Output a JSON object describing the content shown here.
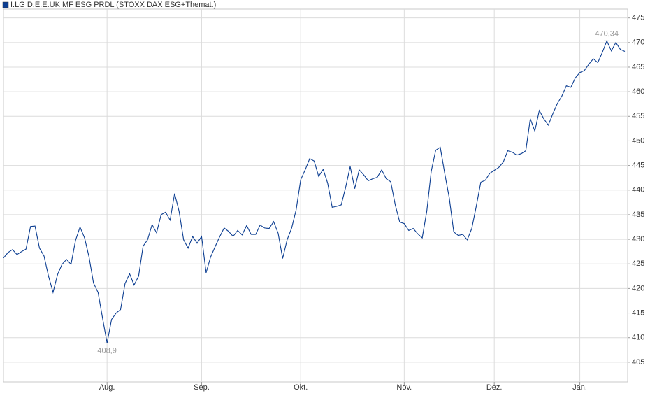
{
  "chart_data": {
    "type": "line",
    "title": "I.LG D.E.E.UK MF ESG PRDL (STOXX DAX ESG+Themat.)",
    "color": "#0b3d91",
    "grid": true,
    "ylim": [
      401,
      476.8
    ],
    "yticks": [
      405,
      410,
      415,
      420,
      425,
      430,
      435,
      440,
      445,
      450,
      455,
      460,
      465,
      470,
      475
    ],
    "categories": [
      null,
      null,
      null,
      null,
      null,
      null,
      null,
      null,
      null,
      null,
      null,
      null,
      null,
      null,
      null,
      null,
      null,
      null,
      null,
      null,
      null,
      null,
      null,
      "Aug.",
      null,
      null,
      null,
      null,
      null,
      null,
      null,
      null,
      null,
      null,
      null,
      null,
      null,
      null,
      null,
      null,
      null,
      null,
      null,
      null,
      "Sep.",
      null,
      null,
      null,
      null,
      null,
      null,
      null,
      null,
      null,
      null,
      null,
      null,
      null,
      null,
      null,
      null,
      null,
      null,
      null,
      null,
      null,
      "Okt.",
      null,
      null,
      null,
      null,
      null,
      null,
      null,
      null,
      null,
      null,
      null,
      null,
      null,
      null,
      null,
      null,
      null,
      null,
      null,
      null,
      null,
      null,
      "Nov.",
      null,
      null,
      null,
      null,
      null,
      null,
      null,
      null,
      null,
      null,
      null,
      null,
      null,
      null,
      null,
      null,
      null,
      null,
      null,
      "Dez.",
      null,
      null,
      null,
      null,
      null,
      null,
      null,
      null,
      null,
      null,
      null,
      null,
      null,
      null,
      null,
      null,
      null,
      null,
      "Jan.",
      null,
      null,
      null,
      null,
      null,
      null,
      null,
      null,
      null,
      null
    ],
    "values": [
      426.2,
      427.3,
      427.9,
      426.9,
      427.5,
      428.0,
      432.6,
      432.7,
      428.2,
      426.6,
      422.5,
      419.2,
      422.8,
      424.9,
      425.9,
      424.9,
      429.8,
      432.5,
      430.3,
      426.4,
      421.1,
      419.2,
      414.0,
      408.9,
      413.7,
      415.0,
      415.7,
      421.0,
      423.0,
      420.7,
      422.5,
      428.6,
      429.9,
      433.0,
      431.3,
      435.0,
      435.5,
      433.9,
      439.3,
      435.7,
      429.9,
      428.2,
      430.6,
      429.2,
      430.6,
      423.2,
      426.4,
      428.5,
      430.5,
      432.3,
      431.6,
      430.6,
      431.8,
      430.9,
      432.8,
      431.0,
      431.0,
      432.9,
      432.3,
      432.2,
      433.6,
      431.2,
      426.1,
      429.9,
      432.3,
      436.0,
      442.1,
      444.1,
      446.4,
      445.9,
      442.8,
      444.2,
      441.4,
      436.5,
      436.7,
      437.0,
      440.6,
      444.8,
      440.3,
      444.1,
      443.1,
      441.9,
      442.3,
      442.6,
      444.1,
      442.3,
      441.7,
      437.0,
      433.5,
      433.2,
      431.8,
      432.2,
      431.1,
      430.3,
      435.7,
      443.8,
      448.1,
      448.7,
      443.4,
      438.4,
      431.5,
      430.8,
      431.0,
      429.9,
      432.2,
      436.7,
      441.6,
      442.0,
      443.4,
      444.0,
      444.6,
      445.7,
      448.0,
      447.7,
      447.1,
      447.4,
      448.0,
      454.5,
      452.0,
      456.2,
      454.5,
      453.2,
      455.5,
      457.6,
      459.1,
      461.2,
      460.9,
      462.8,
      463.9,
      464.3,
      465.6,
      466.7,
      465.9,
      468.0,
      470.34,
      468.3,
      470.0,
      468.6,
      468.2
    ],
    "value_labels": [
      null,
      null,
      null,
      null,
      null,
      null,
      null,
      null,
      null,
      null,
      null,
      null,
      null,
      null,
      null,
      null,
      null,
      null,
      null,
      null,
      null,
      null,
      null,
      "408,9",
      null,
      null,
      null,
      null,
      null,
      null,
      null,
      null,
      null,
      null,
      null,
      null,
      null,
      null,
      null,
      null,
      null,
      null,
      null,
      null,
      null,
      null,
      null,
      null,
      null,
      null,
      null,
      null,
      null,
      null,
      null,
      null,
      null,
      null,
      null,
      null,
      null,
      null,
      null,
      null,
      null,
      null,
      null,
      null,
      null,
      null,
      null,
      null,
      null,
      null,
      null,
      null,
      null,
      null,
      null,
      null,
      null,
      null,
      null,
      null,
      null,
      null,
      null,
      null,
      null,
      null,
      null,
      null,
      null,
      null,
      null,
      null,
      null,
      null,
      null,
      null,
      null,
      null,
      null,
      null,
      null,
      null,
      null,
      null,
      null,
      null,
      null,
      null,
      null,
      null,
      null,
      null,
      null,
      null,
      null,
      null,
      null,
      null,
      null,
      null,
      null,
      null,
      null,
      null,
      null,
      null,
      null,
      null,
      null,
      null,
      "470,34",
      null,
      null,
      null,
      null
    ]
  }
}
